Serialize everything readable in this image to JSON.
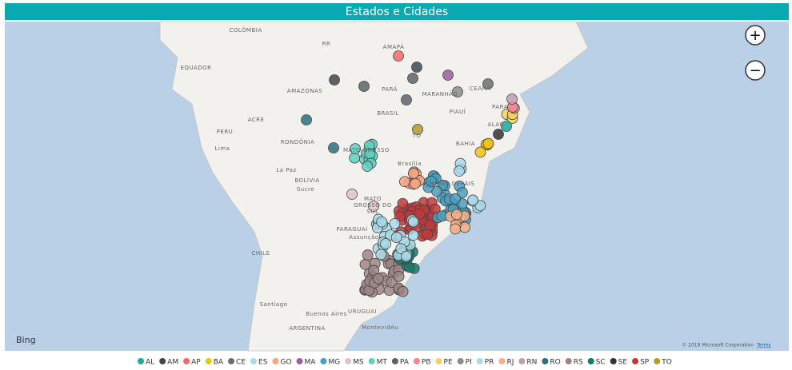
{
  "header": {
    "title": "Estados e Cidades"
  },
  "map": {
    "labels": [
      "COLÔMBIA",
      "RR",
      "AMAPÁ",
      "EQUADOR",
      "AMAZONAS",
      "PARÁ",
      "MARANHÃO",
      "CEARÁ",
      "PARA",
      "BRASIL",
      "PIAUÍ",
      "ACRE",
      "PERU",
      "Lima",
      "RONDÔNIA",
      "MATO GROSSO",
      "TO",
      "BAHIA",
      "ALAG",
      "La Paz",
      "BOLÍVIA",
      "Sucre",
      "Brasília",
      "MINAS GERAIS",
      "MATO",
      "GROSSO DO",
      "SUL",
      "PARAGUAI",
      "Assunção",
      "CHILE",
      "Santiago",
      "Buenos Aires",
      "URUGUAI",
      "Montevidéu",
      "ARGENTINA"
    ],
    "attribution": "Bing",
    "copyright": "© 2019 Microsoft Corporation",
    "terms": "Terms",
    "zoom_in": "+",
    "zoom_out": "−"
  },
  "legend": [
    {
      "name": "AL",
      "color": "#1aab9a"
    },
    {
      "name": "AM",
      "color": "#3b4a4f"
    },
    {
      "name": "AP",
      "color": "#f26a6a"
    },
    {
      "name": "BA",
      "color": "#f2c40f"
    },
    {
      "name": "CE",
      "color": "#6b7070"
    },
    {
      "name": "ES",
      "color": "#a8d8ea"
    },
    {
      "name": "GO",
      "color": "#f4a582"
    },
    {
      "name": "MA",
      "color": "#9b5f9f"
    },
    {
      "name": "MG",
      "color": "#4a9fbe"
    },
    {
      "name": "MS",
      "color": "#e0c4c4"
    },
    {
      "name": "MT",
      "color": "#5ecfc0"
    },
    {
      "name": "PA",
      "color": "#5b6569"
    },
    {
      "name": "PB",
      "color": "#f4878a"
    },
    {
      "name": "PE",
      "color": "#f5d25e"
    },
    {
      "name": "PI",
      "color": "#8c8c8c"
    },
    {
      "name": "PR",
      "color": "#a8dbe8"
    },
    {
      "name": "RJ",
      "color": "#f4b08a"
    },
    {
      "name": "RN",
      "color": "#c49ab8"
    },
    {
      "name": "RO",
      "color": "#2f7080"
    },
    {
      "name": "RS",
      "color": "#9e8585"
    },
    {
      "name": "SC",
      "color": "#167a6b"
    },
    {
      "name": "SE",
      "color": "#333333"
    },
    {
      "name": "SP",
      "color": "#c0393b"
    },
    {
      "name": "TO",
      "color": "#b59a2a"
    }
  ]
}
